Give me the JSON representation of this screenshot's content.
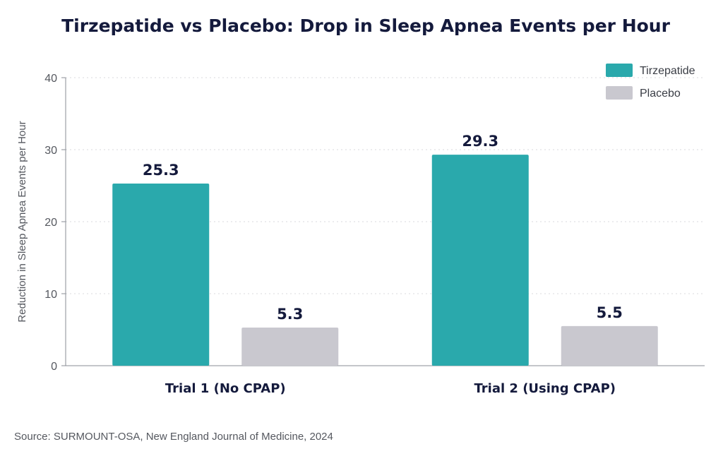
{
  "chart_data": {
    "type": "bar",
    "title": "Tirzepatide vs Placebo: Drop in Sleep Apnea Events per Hour",
    "xlabel": "",
    "ylabel": "Reduction in Sleep Apnea Events per Hour",
    "ylim": [
      0,
      40
    ],
    "yticks": [
      0,
      10,
      20,
      30,
      40
    ],
    "grid": true,
    "legend_position": "top-right",
    "categories": [
      "Trial 1 (No CPAP)",
      "Trial 2 (Using CPAP)"
    ],
    "series": [
      {
        "name": "Tirzepatide",
        "values": [
          25.3,
          29.3
        ],
        "color": "#2aa9ac"
      },
      {
        "name": "Placebo",
        "values": [
          5.3,
          5.5
        ],
        "color": "#c9c8cf"
      }
    ],
    "data_labels": [
      [
        "25.3",
        "29.3"
      ],
      [
        "5.3",
        "5.5"
      ]
    ]
  },
  "source": "Source: SURMOUNT-OSA, New England Journal of Medicine, 2024"
}
